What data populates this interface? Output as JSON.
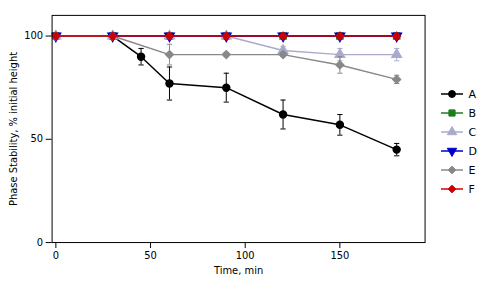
{
  "chart_data": {
    "type": "line",
    "xlabel": "Time, min",
    "ylabel": "Phase Stability, % initial height",
    "xlim": [
      -2,
      195
    ],
    "ylim": [
      0,
      110
    ],
    "xticks": [
      0,
      50,
      100,
      150
    ],
    "yticks": [
      0,
      50,
      100
    ],
    "grid": false,
    "legend": "right",
    "series": [
      {
        "name": "A",
        "color": "#000000",
        "marker": "circle",
        "line_style": "solid",
        "x": [
          0,
          30,
          45,
          60,
          90,
          120,
          150,
          180
        ],
        "values": [
          100,
          100,
          90,
          77,
          75,
          62,
          57,
          45
        ],
        "yerr": [
          0,
          0,
          4,
          8,
          7,
          7,
          5,
          3
        ]
      },
      {
        "name": "B",
        "color": "#1a7f1a",
        "marker": "square",
        "line_style": "solid",
        "x": [
          0,
          30,
          60,
          90,
          120,
          150,
          180
        ],
        "values": [
          100,
          100,
          100,
          100,
          100,
          100,
          100
        ],
        "yerr": [
          0,
          0,
          0,
          0,
          0,
          0,
          0
        ]
      },
      {
        "name": "C",
        "color": "#aaaacc",
        "marker": "triangle-up",
        "line_style": "solid",
        "x": [
          0,
          30,
          60,
          90,
          120,
          150,
          180
        ],
        "values": [
          100,
          100,
          100,
          100,
          93,
          91,
          91
        ],
        "yerr": [
          0,
          0,
          0,
          0,
          2,
          3,
          3
        ]
      },
      {
        "name": "D",
        "color": "#0000cc",
        "marker": "triangle-down",
        "line_style": "solid",
        "x": [
          0,
          30,
          60,
          90,
          120,
          150,
          180
        ],
        "values": [
          100,
          100,
          100,
          100,
          100,
          100,
          100
        ],
        "yerr": [
          0,
          0,
          0,
          0,
          0,
          0,
          0
        ]
      },
      {
        "name": "E",
        "color": "#888888",
        "marker": "diamond",
        "line_style": "solid",
        "x": [
          0,
          30,
          60,
          90,
          120,
          150,
          180
        ],
        "values": [
          100,
          100,
          91,
          91,
          91,
          86,
          79
        ],
        "yerr": [
          0,
          0,
          5,
          1,
          1,
          4,
          2
        ]
      },
      {
        "name": "F",
        "color": "#cc0000",
        "marker": "diamond",
        "line_style": "solid",
        "x": [
          0,
          30,
          60,
          90,
          120,
          150,
          180
        ],
        "values": [
          100,
          100,
          100,
          100,
          100,
          100,
          100
        ],
        "yerr": [
          0,
          0,
          0,
          0,
          0,
          0,
          0
        ]
      }
    ]
  }
}
